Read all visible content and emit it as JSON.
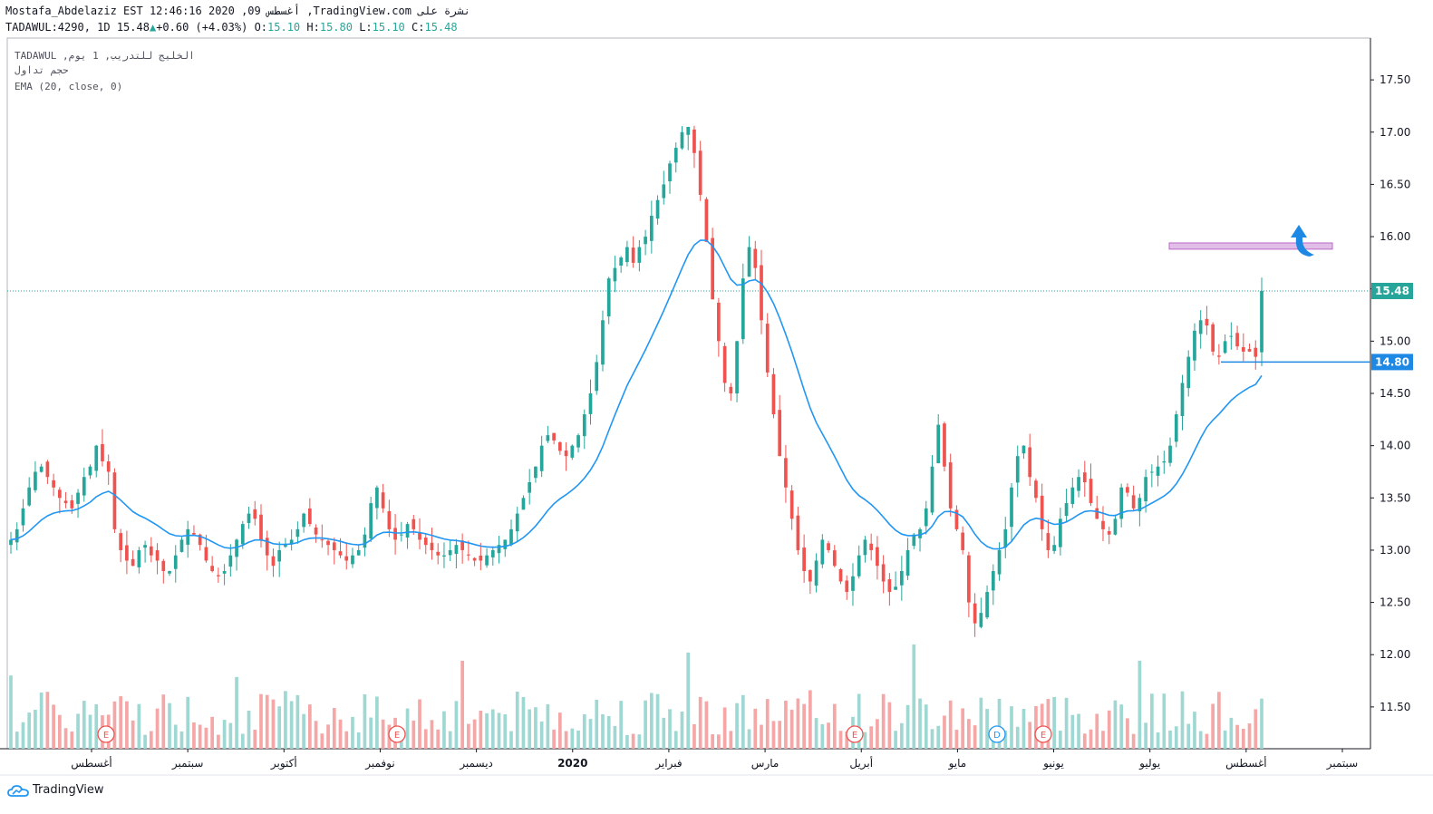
{
  "header": {
    "line1": "Mostafa_Abdelaziz EST 12:46:16 2020 ,09 أغسطس ,TradingView.com نشرة على",
    "symbol": "TADAWUL:4290, 1D 15.48",
    "change_arrow": "▲",
    "change": "+0.60 (+4.03%)",
    "o_label": "O:",
    "o_value": "15.10",
    "h_label": "H:",
    "h_value": "15.80",
    "l_label": "L:",
    "l_value": "15.10",
    "c_label": "C:",
    "c_value": "15.48"
  },
  "legend": {
    "line1": "TADAWUL ,الخليج للتدريب, 1 يوم",
    "line2": "حجم تداول",
    "line3": "EMA (20, close, 0)"
  },
  "brand": {
    "name": "TradingView",
    "icon": "tradingview-cloud-icon"
  },
  "colors": {
    "up": "#26a69a",
    "down": "#ef5350",
    "ema": "#2196f3",
    "vol_up": "#9fd8d2",
    "vol_down": "#f4a7a6",
    "zone": "#e1bee7",
    "zone_border": "#ba68c8",
    "arrow": "#1e88e5"
  },
  "chart_data": {
    "type": "candlestick",
    "y_axis": {
      "ylim": [
        11.1,
        17.9
      ],
      "ticks": [
        "17.50",
        "17.00",
        "16.50",
        "16.00",
        "15.50",
        "15.00",
        "14.50",
        "14.00",
        "13.50",
        "13.00",
        "12.50",
        "12.00",
        "11.50"
      ]
    },
    "x_axis": {
      "ticks": [
        "أغسطس",
        "سبتمبر",
        "أكتوبر",
        "نوفمبر",
        "ديسمبر",
        "2020",
        "فبراير",
        "مارس",
        "أبريل",
        "مايو",
        "يونيو",
        "يوليو",
        "أغسطس",
        "سبتمبر"
      ],
      "bold": "2020"
    },
    "last_price": {
      "value": 15.48,
      "label": "15.48"
    },
    "horizontal_line": {
      "value": 14.8,
      "label": "14.80"
    },
    "resistance_zone": [
      15.88,
      15.94
    ],
    "ema_period": 20,
    "close_series": [
      13.1,
      13.2,
      13.4,
      13.6,
      13.75,
      13.8,
      13.7,
      13.6,
      13.5,
      13.45,
      13.4,
      13.55,
      13.7,
      13.8,
      14.0,
      13.85,
      13.75,
      13.2,
      13.0,
      12.9,
      12.85,
      13.0,
      13.05,
      12.95,
      12.9,
      12.8,
      12.8,
      12.95,
      13.1,
      13.2,
      13.15,
      13.05,
      12.9,
      12.8,
      12.75,
      12.8,
      12.95,
      13.1,
      13.25,
      13.35,
      13.3,
      13.1,
      12.95,
      12.85,
      13.0,
      13.05,
      13.1,
      13.2,
      13.35,
      13.25,
      13.15,
      13.1,
      13.05,
      13.0,
      12.95,
      12.9,
      12.95,
      13.0,
      13.15,
      13.45,
      13.6,
      13.4,
      13.2,
      13.1,
      13.15,
      13.25,
      13.2,
      13.1,
      13.05,
      13.0,
      12.95,
      12.95,
      13.0,
      13.05,
      13.0,
      12.95,
      12.9,
      12.9,
      12.95,
      13.0,
      13.05,
      13.1,
      13.2,
      13.35,
      13.5,
      13.65,
      13.8,
      14.0,
      14.1,
      14.05,
      13.95,
      13.9,
      14.0,
      14.1,
      14.3,
      14.5,
      14.8,
      15.2,
      15.6,
      15.7,
      15.8,
      15.9,
      15.75,
      15.9,
      16.0,
      16.2,
      16.35,
      16.5,
      16.7,
      16.85,
      17.0,
      17.05,
      16.8,
      16.4,
      15.95,
      15.4,
      15.0,
      14.6,
      14.5,
      15.0,
      15.6,
      15.9,
      15.7,
      15.2,
      14.7,
      14.3,
      13.9,
      13.6,
      13.3,
      13.0,
      12.8,
      12.7,
      12.9,
      13.1,
      13.0,
      12.85,
      12.7,
      12.6,
      12.75,
      12.95,
      13.1,
      13.0,
      12.85,
      12.7,
      12.6,
      12.65,
      12.8,
      13.0,
      13.15,
      13.2,
      13.4,
      13.8,
      14.2,
      13.8,
      13.4,
      13.2,
      13.0,
      12.5,
      12.3,
      12.4,
      12.6,
      12.8,
      13.0,
      13.2,
      13.6,
      13.9,
      14.0,
      13.7,
      13.5,
      13.2,
      13.0,
      13.05,
      13.3,
      13.45,
      13.6,
      13.7,
      13.65,
      13.45,
      13.3,
      13.2,
      13.15,
      13.3,
      13.6,
      13.55,
      13.4,
      13.5,
      13.7,
      13.75,
      13.8,
      13.85,
      14.0,
      14.3,
      14.6,
      14.85,
      15.1,
      15.2,
      15.15,
      14.9,
      14.85,
      15.0,
      15.05,
      14.95,
      14.9,
      14.9,
      14.85,
      15.48
    ],
    "volume_note": "volume histogram shown below price"
  }
}
